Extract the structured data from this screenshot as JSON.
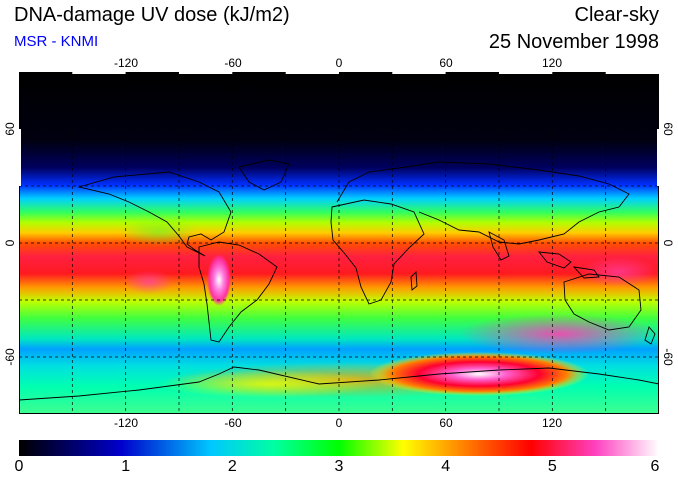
{
  "header": {
    "title": "DNA-damage UV dose (kJ/m2)",
    "subtitle": "MSR - KNMI",
    "subtitle_color": "#0000ff",
    "condition": "Clear-sky",
    "date": "25 November 1998"
  },
  "map": {
    "projection": "equirectangular",
    "lon_range": [
      -180,
      180
    ],
    "lat_range": [
      -90,
      90
    ],
    "grid": "dashed 30-degree lines",
    "lon_tick_labels": [
      "-120",
      "-60",
      "0",
      "60",
      "120"
    ],
    "lat_tick_labels": [
      "60",
      "0",
      "-60"
    ],
    "features": [
      "coastlines",
      "high UV maximum near 60-70 S, 60-110 E",
      "high UV maximum over western South America near 20 S"
    ]
  },
  "colorbar": {
    "range": [
      0,
      6
    ],
    "tick_labels": [
      "0",
      "1",
      "2",
      "3",
      "4",
      "5",
      "6"
    ],
    "colors": [
      "#000000",
      "#0000cc",
      "#00c8ff",
      "#00ff00",
      "#ffff00",
      "#ff0000",
      "#ff40c0",
      "#ffffff"
    ]
  }
}
